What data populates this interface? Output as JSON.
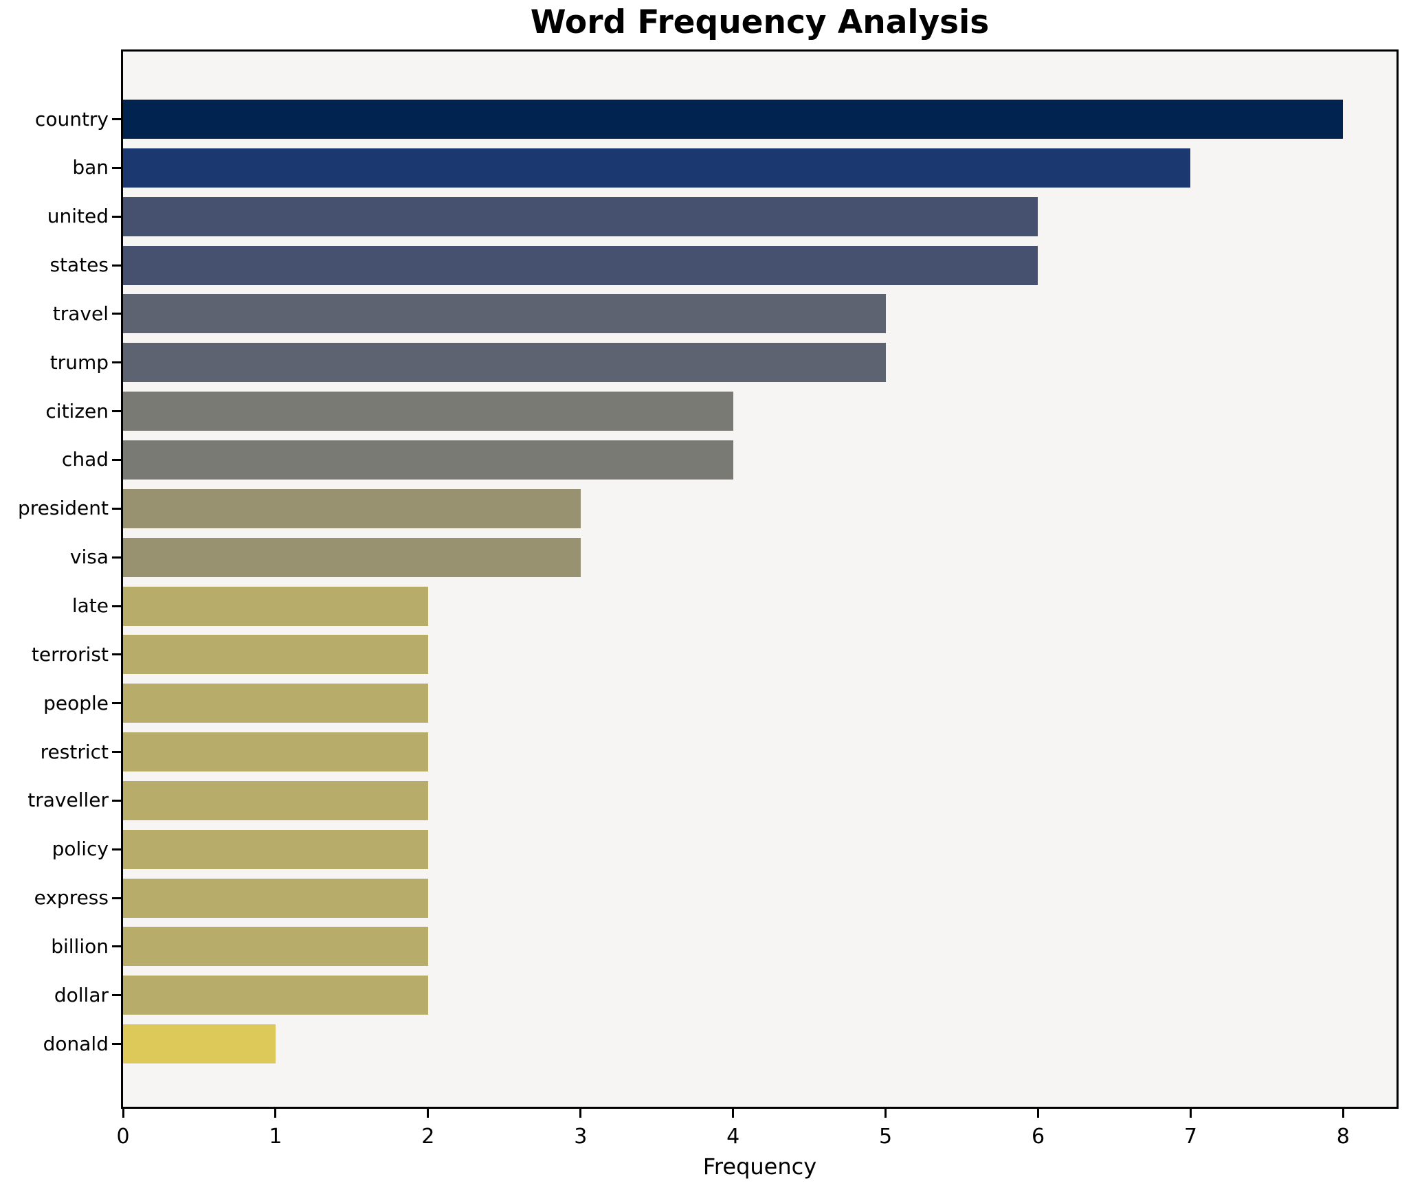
{
  "chart_data": {
    "type": "bar",
    "orientation": "horizontal",
    "title": "Word Frequency Analysis",
    "xlabel": "Frequency",
    "ylabel": "",
    "grid": false,
    "legend": null,
    "plot_background": "#f6f5f4",
    "xlim": [
      0,
      8.35
    ],
    "xticks": [
      0,
      1,
      2,
      3,
      4,
      5,
      6,
      7,
      8
    ],
    "categories": [
      "country",
      "ban",
      "united",
      "states",
      "travel",
      "trump",
      "citizen",
      "chad",
      "president",
      "visa",
      "late",
      "terrorist",
      "people",
      "restrict",
      "traveller",
      "policy",
      "express",
      "billion",
      "dollar",
      "donald"
    ],
    "values": [
      8,
      7,
      6,
      6,
      5,
      5,
      4,
      4,
      3,
      3,
      2,
      2,
      2,
      2,
      2,
      2,
      2,
      2,
      2,
      1
    ],
    "bar_colors": [
      "#00234f",
      "#1c3870",
      "#45516e",
      "#45516e",
      "#5d6370",
      "#5d6370",
      "#7a7a75",
      "#7a7a75",
      "#999270",
      "#999270",
      "#b8ac6b",
      "#b8ac6b",
      "#b8ac6b",
      "#b8ac6b",
      "#b8ac6b",
      "#b8ac6b",
      "#b8ac6b",
      "#b8ac6b",
      "#b8ac6b",
      "#dcc95a"
    ]
  }
}
